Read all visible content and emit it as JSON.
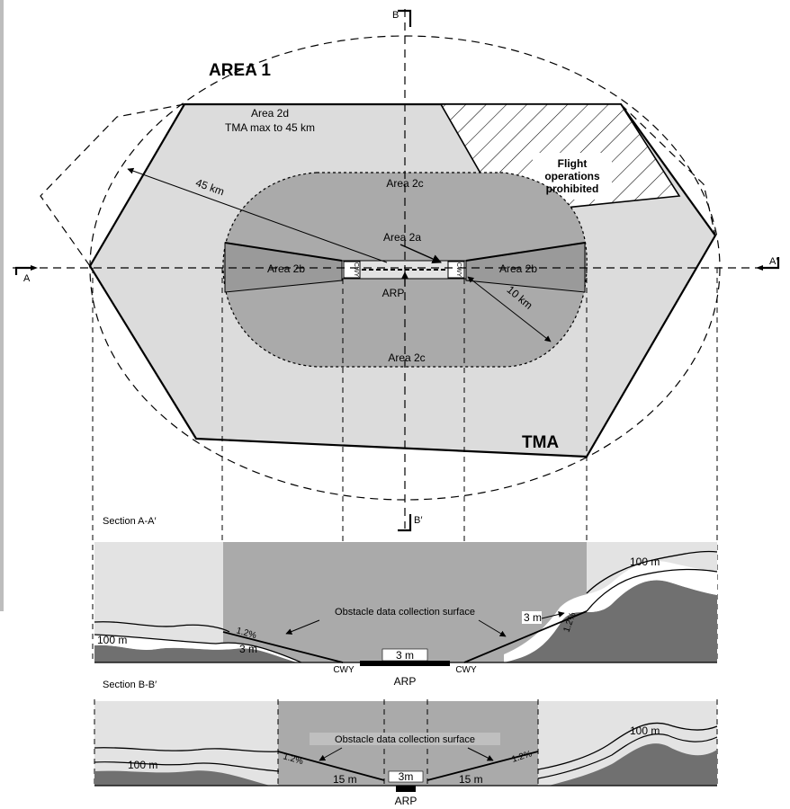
{
  "labels": {
    "area1": "AREA 1",
    "area2d": "Area 2d",
    "area2d_sub": "TMA max to 45 km",
    "flight_ops_1": "Flight",
    "flight_ops_2": "operations",
    "flight_ops_3": "prohibited",
    "area2c_top": "Area 2c",
    "area2c_bottom": "Area 2c",
    "area2a": "Area 2a",
    "area2b_left": "Area 2b",
    "area2b_right": "Area 2b",
    "arp": "ARP",
    "radius_45": "45 km",
    "radius_10": "10 km",
    "tma": "TMA",
    "cwy_box": "CWY"
  },
  "section_markers": {
    "a": "A",
    "a_prime": "A′",
    "b": "B",
    "b_prime": "B′"
  },
  "section_aa": {
    "title": "Section A-A′",
    "surface_label": "Obstacle data collection surface",
    "height_100_left": "100 m",
    "height_100_right": "100 m",
    "slope": "1.2%",
    "slope_right": "1.2%",
    "offset_3m_left": "3 m",
    "offset_3m_center": "3 m",
    "offset_3m_right": "3 m",
    "cwy_left": "CWY",
    "cwy_right": "CWY",
    "arp": "ARP"
  },
  "section_bb": {
    "title": "Section B-B′",
    "surface_label": "Obstacle data collection surface",
    "height_100_left": "100 m",
    "height_100_right": "100 m",
    "slope_left": "1.2%",
    "slope_right": "1.2%",
    "dist_15_left": "15 m",
    "dist_15_right": "15 m",
    "center_3m": "3m",
    "arp": "ARP"
  },
  "colors": {
    "light_gray": "#dcdcdc",
    "mid_gray": "#aaaaaa",
    "dark_gray": "#8a8a8a",
    "sky": "#e3e3e3",
    "terrain": "#707070"
  }
}
